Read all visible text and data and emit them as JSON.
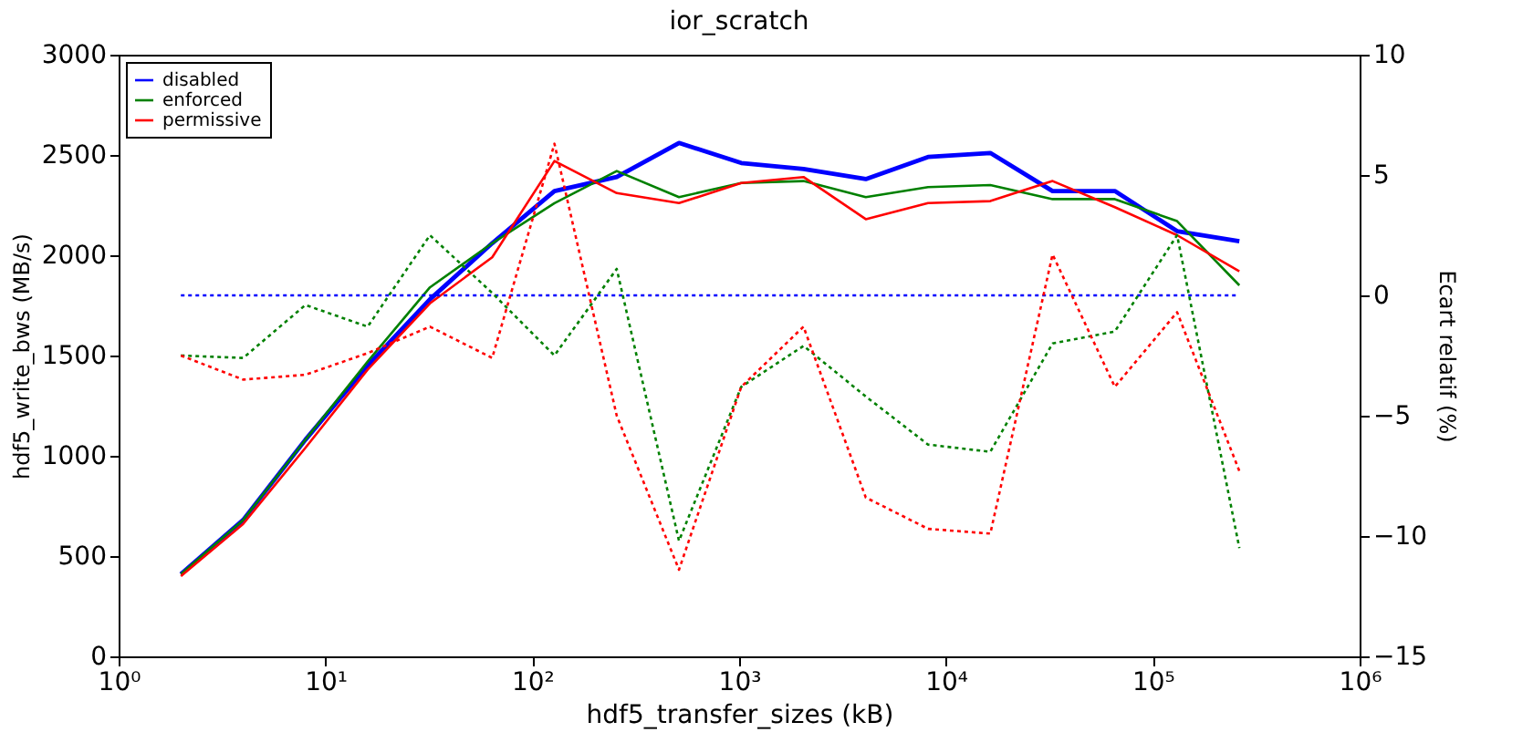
{
  "chart_data": {
    "type": "line",
    "title": "ior_scratch",
    "xlabel": "hdf5_transfer_sizes (kB)",
    "ylabel": "hdf5_write_bws (MB/s)",
    "y2label": "Ecart relatif (%)",
    "x": [
      2,
      4,
      8,
      16,
      32,
      64,
      128,
      256,
      512,
      1024,
      2048,
      4096,
      8192,
      16384,
      32768,
      65536,
      131072,
      262144
    ],
    "log": "x",
    "xlim": [
      1,
      1000000
    ],
    "xticks": [
      {
        "value": 1,
        "label": "10⁰"
      },
      {
        "value": 10,
        "label": "10¹"
      },
      {
        "value": 100,
        "label": "10²"
      },
      {
        "value": 1000,
        "label": "10³"
      },
      {
        "value": 10000,
        "label": "10⁴"
      },
      {
        "value": 100000,
        "label": "10⁵"
      },
      {
        "value": 1000000,
        "label": "10⁶"
      }
    ],
    "ylim": [
      0,
      3000
    ],
    "yticks": [
      0,
      500,
      1000,
      1500,
      2000,
      2500,
      3000
    ],
    "y2lim": [
      -15,
      10
    ],
    "y2ticks": [
      -15,
      -10,
      -5,
      0,
      5,
      10
    ],
    "grid": false,
    "legend": "top left",
    "series": [
      {
        "name": "disabled",
        "color": "#0000ff",
        "line_style": "solid",
        "values": [
          410,
          680,
          1080,
          1450,
          1780,
          2060,
          2320,
          2390,
          2560,
          2460,
          2430,
          2380,
          2490,
          2510,
          2320,
          2320,
          2120,
          2070
        ]
      },
      {
        "name": "enforced",
        "color": "#008000",
        "line_style": "solid",
        "values": [
          410,
          680,
          1080,
          1470,
          1840,
          2060,
          2260,
          2420,
          2290,
          2360,
          2370,
          2290,
          2340,
          2350,
          2280,
          2280,
          2170,
          1850
        ]
      },
      {
        "name": "permissive",
        "color": "#ff0000",
        "line_style": "solid",
        "values": [
          400,
          660,
          1040,
          1430,
          1760,
          1990,
          2470,
          2310,
          2260,
          2360,
          2390,
          2180,
          2260,
          2270,
          2370,
          2240,
          2100,
          1920
        ]
      },
      {
        "color": "#0000ff",
        "line_style": "dotted",
        "axis": "y2",
        "values": [
          0,
          0,
          0,
          0,
          0,
          0,
          0,
          0,
          0,
          0,
          0,
          0,
          0,
          0,
          0,
          0,
          0,
          0
        ]
      },
      {
        "color": "#008000",
        "line_style": "dotted",
        "axis": "y2",
        "values": [
          -2.5,
          -2.6,
          -0.4,
          -1.3,
          2.5,
          0.1,
          -2.5,
          1.1,
          -10.2,
          -3.8,
          -2.1,
          -4.2,
          -6.2,
          -6.5,
          -2.0,
          -1.5,
          2.5,
          -10.5
        ]
      },
      {
        "color": "#ff0000",
        "line_style": "dotted",
        "axis": "y2",
        "values": [
          -2.5,
          -3.5,
          -3.3,
          -2.4,
          -1.3,
          -2.6,
          6.3,
          -5.0,
          -11.4,
          -3.8,
          -1.3,
          -8.4,
          -9.7,
          -9.9,
          1.7,
          -3.8,
          -0.7,
          -7.3
        ]
      }
    ]
  }
}
